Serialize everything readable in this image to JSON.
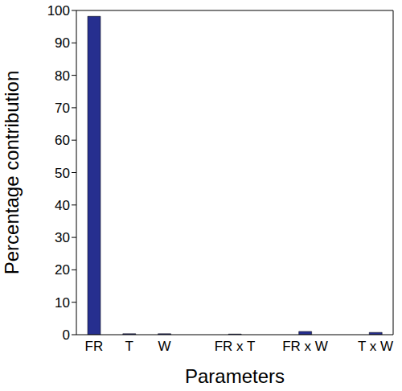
{
  "chart_data": {
    "type": "bar",
    "x_label": "Parameters",
    "y_label": "Percentage contribution",
    "categories": [
      "FR",
      "T",
      "W",
      null,
      "FR x T",
      null,
      "FR x W",
      null,
      "T x W"
    ],
    "values": [
      98.2,
      0.3,
      0.3,
      null,
      0.2,
      null,
      1.0,
      null,
      0.7
    ],
    "color": "#262f8f",
    "ylim": [
      0,
      100
    ],
    "yticks": [
      0,
      10,
      20,
      30,
      40,
      50,
      60,
      70,
      80,
      90,
      100
    ],
    "grid": false
  }
}
